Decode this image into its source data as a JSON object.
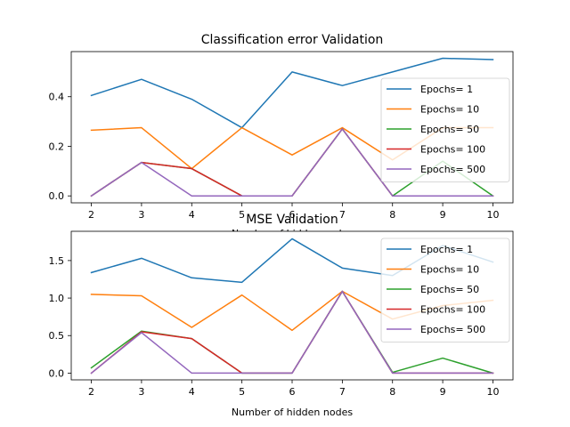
{
  "chart_data": [
    {
      "type": "line",
      "title": "Classification error Validation",
      "xlabel": "Number of hidden nodes",
      "ylabel": "",
      "x": [
        2,
        3,
        4,
        5,
        6,
        7,
        8,
        9,
        10
      ],
      "xticks": [
        "2",
        "3",
        "4",
        "5",
        "6",
        "7",
        "8",
        "9",
        "10"
      ],
      "yticks": [
        0.0,
        0.2,
        0.4
      ],
      "ytick_labels": [
        "0.0",
        "0.2",
        "0.4"
      ],
      "xlim": [
        1.6,
        10.4
      ],
      "ylim": [
        -0.028,
        0.582
      ],
      "grid": false,
      "legend_position": "right",
      "series": [
        {
          "name": "Epochs= 1",
          "color": "#1f77b4",
          "values": [
            0.405,
            0.47,
            0.39,
            0.275,
            0.5,
            0.445,
            0.5,
            0.555,
            0.55
          ]
        },
        {
          "name": "Epochs= 10",
          "color": "#ff7f0e",
          "values": [
            0.265,
            0.275,
            0.11,
            0.275,
            0.165,
            0.275,
            0.145,
            0.275,
            0.275
          ]
        },
        {
          "name": "Epochs= 50",
          "color": "#2ca02c",
          "values": [
            0.0,
            0.135,
            0.11,
            0.0,
            0.0,
            0.27,
            0.0,
            0.14,
            0.0
          ]
        },
        {
          "name": "Epochs= 100",
          "color": "#d62728",
          "values": [
            0.0,
            0.135,
            0.11,
            0.0,
            0.0,
            0.27,
            0.0,
            0.0,
            0.0
          ]
        },
        {
          "name": "Epochs= 500",
          "color": "#9467bd",
          "values": [
            0.0,
            0.135,
            0.0,
            0.0,
            0.0,
            0.27,
            0.0,
            0.0,
            0.0
          ]
        }
      ]
    },
    {
      "type": "line",
      "title": "MSE Validation",
      "xlabel": "Number of hidden nodes",
      "ylabel": "",
      "x": [
        2,
        3,
        4,
        5,
        6,
        7,
        8,
        9,
        10
      ],
      "xticks": [
        "2",
        "3",
        "4",
        "5",
        "6",
        "7",
        "8",
        "9",
        "10"
      ],
      "yticks": [
        0.0,
        0.5,
        1.0,
        1.5
      ],
      "ytick_labels": [
        "0.0",
        "0.5",
        "1.0",
        "1.5"
      ],
      "xlim": [
        1.6,
        10.4
      ],
      "ylim": [
        -0.09,
        1.89
      ],
      "grid": false,
      "legend_position": "right",
      "series": [
        {
          "name": "Epochs= 1",
          "color": "#1f77b4",
          "values": [
            1.34,
            1.53,
            1.27,
            1.21,
            1.79,
            1.4,
            1.3,
            1.7,
            1.48
          ]
        },
        {
          "name": "Epochs= 10",
          "color": "#ff7f0e",
          "values": [
            1.05,
            1.03,
            0.61,
            1.04,
            0.57,
            1.09,
            0.72,
            0.9,
            0.97
          ]
        },
        {
          "name": "Epochs= 50",
          "color": "#2ca02c",
          "values": [
            0.07,
            0.56,
            0.46,
            0.0,
            0.0,
            1.09,
            0.01,
            0.2,
            0.0
          ]
        },
        {
          "name": "Epochs= 100",
          "color": "#d62728",
          "values": [
            0.0,
            0.55,
            0.46,
            0.0,
            0.0,
            1.09,
            0.0,
            0.0,
            0.0
          ]
        },
        {
          "name": "Epochs= 500",
          "color": "#9467bd",
          "values": [
            0.0,
            0.54,
            0.0,
            0.0,
            0.0,
            1.09,
            0.0,
            0.0,
            0.0
          ]
        }
      ]
    }
  ]
}
